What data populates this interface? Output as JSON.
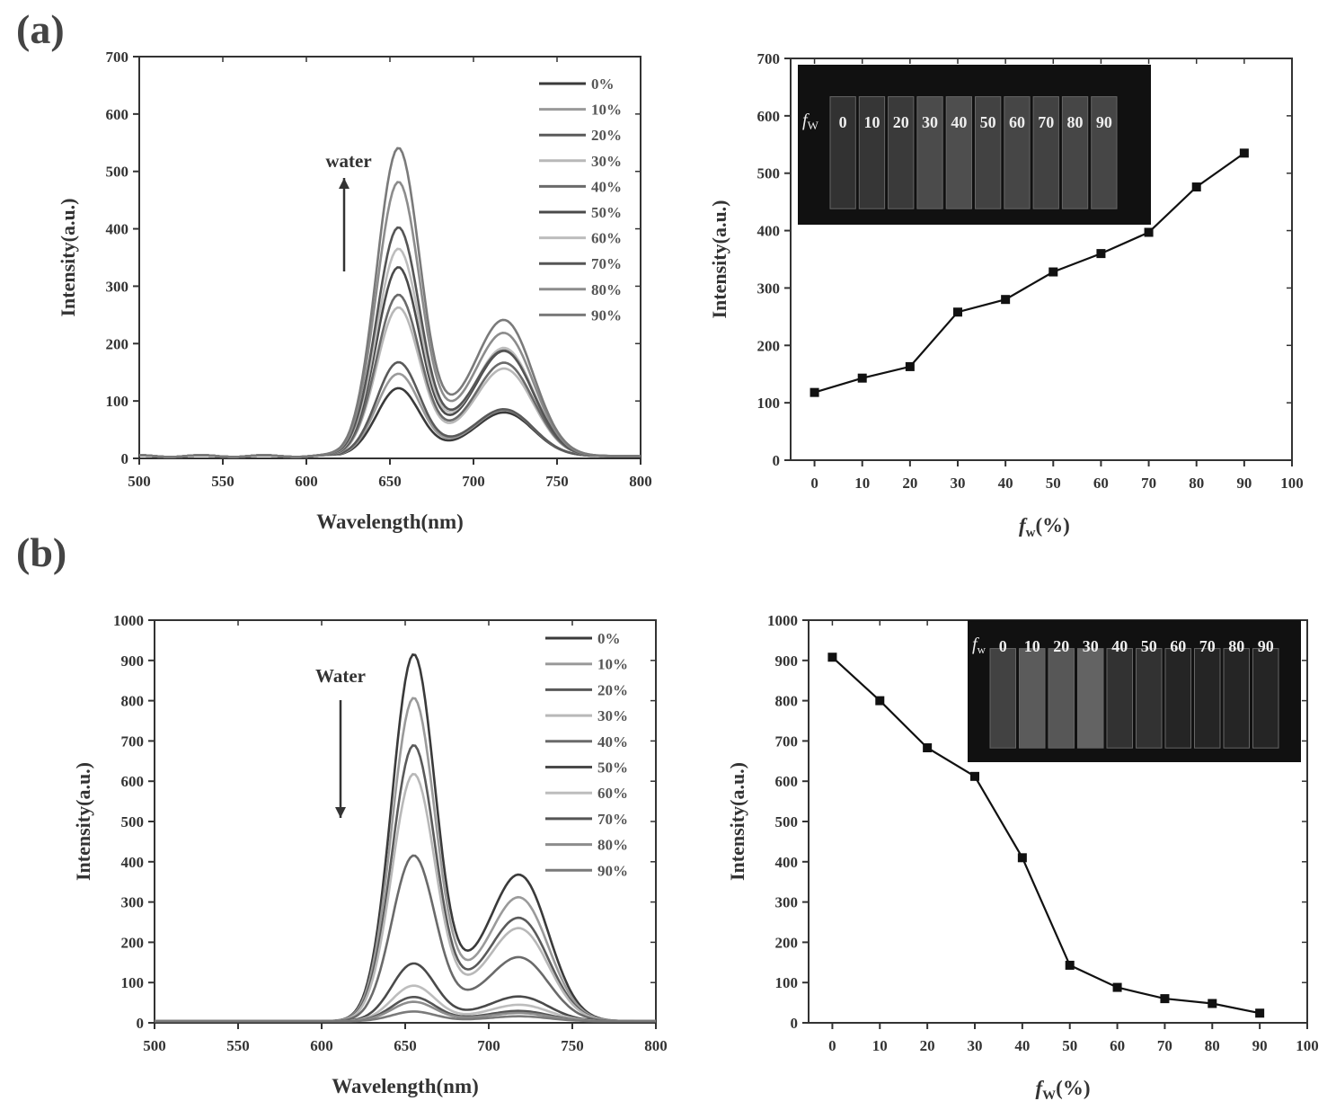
{
  "panel_labels": {
    "a": "(a)",
    "b": "(b)"
  },
  "colors": {
    "axis": "#333333",
    "spectrum_palette": [
      "#3a3a3a",
      "#9a9a9a",
      "#5a5a5a",
      "#b8b8b8",
      "#6a6a6a",
      "#4a4a4a",
      "#bdbdbd",
      "#555555",
      "#8c8c8c",
      "#7a7a7a"
    ],
    "inset_bg": "#111111",
    "marker": "#111111"
  },
  "chart_data": [
    {
      "id": "a-spectra",
      "type": "line",
      "xlabel": "Wavelength(nm)",
      "ylabel": "Intensity(a.u.)",
      "xlim": [
        500,
        800
      ],
      "ylim": [
        0,
        700
      ],
      "xticks": [
        "500",
        "550",
        "600",
        "650",
        "700",
        "750",
        "800"
      ],
      "yticks": [
        "0",
        "100",
        "200",
        "300",
        "400",
        "500",
        "600",
        "700"
      ],
      "annotation": "water",
      "arrow_direction": "up",
      "series": [
        {
          "name": "0%",
          "peak650": 118,
          "peak720": 75
        },
        {
          "name": "10%",
          "peak650": 143,
          "peak720": 79
        },
        {
          "name": "20%",
          "peak650": 163,
          "peak720": 80
        },
        {
          "name": "30%",
          "peak650": 258,
          "peak720": 150
        },
        {
          "name": "40%",
          "peak650": 280,
          "peak720": 160
        },
        {
          "name": "50%",
          "peak650": 328,
          "peak720": 180
        },
        {
          "name": "60%",
          "peak650": 360,
          "peak720": 185
        },
        {
          "name": "70%",
          "peak650": 397,
          "peak720": 180
        },
        {
          "name": "80%",
          "peak650": 476,
          "peak720": 210
        },
        {
          "name": "90%",
          "peak650": 535,
          "peak720": 232
        }
      ]
    },
    {
      "id": "a-intensity",
      "type": "line",
      "xlabel_italic": "f",
      "xlabel_sub": "w",
      "xlabel_rest": "(%)",
      "ylabel": "Intensity(a.u.)",
      "xlim": [
        -5,
        100
      ],
      "ylim": [
        0,
        700
      ],
      "xticks": [
        "0",
        "10",
        "20",
        "30",
        "40",
        "50",
        "60",
        "70",
        "80",
        "90",
        "100"
      ],
      "yticks": [
        "0",
        "100",
        "200",
        "300",
        "400",
        "500",
        "600",
        "700"
      ],
      "x": [
        0,
        10,
        20,
        30,
        40,
        50,
        60,
        70,
        80,
        90
      ],
      "y": [
        118,
        143,
        163,
        258,
        280,
        328,
        360,
        397,
        476,
        535
      ],
      "inset": {
        "label_italic": "f",
        "label_sub": "W",
        "vial_labels": [
          "0",
          "10",
          "20",
          "30",
          "40",
          "50",
          "60",
          "70",
          "80",
          "90"
        ],
        "brightness": [
          0.25,
          0.3,
          0.35,
          0.55,
          0.6,
          0.45,
          0.5,
          0.45,
          0.5,
          0.5
        ]
      }
    },
    {
      "id": "b-spectra",
      "type": "line",
      "xlabel": "Wavelength(nm)",
      "ylabel": "Intensity(a.u.)",
      "xlim": [
        500,
        800
      ],
      "ylim": [
        0,
        1000
      ],
      "xticks": [
        "500",
        "550",
        "600",
        "650",
        "700",
        "750",
        "800"
      ],
      "yticks": [
        "0",
        "100",
        "200",
        "300",
        "400",
        "500",
        "600",
        "700",
        "800",
        "900",
        "1000"
      ],
      "annotation": "Water",
      "arrow_direction": "down",
      "series": [
        {
          "name": "0%",
          "peak650": 908,
          "peak720": 355
        },
        {
          "name": "10%",
          "peak650": 800,
          "peak720": 300
        },
        {
          "name": "20%",
          "peak650": 683,
          "peak720": 250
        },
        {
          "name": "30%",
          "peak650": 612,
          "peak720": 225
        },
        {
          "name": "40%",
          "peak650": 410,
          "peak720": 155
        },
        {
          "name": "50%",
          "peak650": 143,
          "peak720": 60
        },
        {
          "name": "60%",
          "peak650": 88,
          "peak720": 40
        },
        {
          "name": "70%",
          "peak650": 60,
          "peak720": 25
        },
        {
          "name": "80%",
          "peak650": 48,
          "peak720": 20
        },
        {
          "name": "90%",
          "peak650": 24,
          "peak720": 12
        }
      ]
    },
    {
      "id": "b-intensity",
      "type": "line",
      "xlabel_italic": "f",
      "xlabel_sub": "W",
      "xlabel_rest": "(%)",
      "ylabel": "Intensity(a.u.)",
      "xlim": [
        -5,
        100
      ],
      "ylim": [
        0,
        1000
      ],
      "xticks": [
        "0",
        "10",
        "20",
        "30",
        "40",
        "50",
        "60",
        "70",
        "80",
        "90",
        "100"
      ],
      "yticks": [
        "0",
        "100",
        "200",
        "300",
        "400",
        "500",
        "600",
        "700",
        "800",
        "900",
        "1000"
      ],
      "x": [
        0,
        10,
        20,
        30,
        40,
        50,
        60,
        70,
        80,
        90
      ],
      "y": [
        908,
        800,
        683,
        612,
        410,
        143,
        88,
        60,
        48,
        24
      ],
      "inset": {
        "label_italic": "f",
        "label_sub": "w",
        "vial_labels": [
          "0",
          "10",
          "20",
          "30",
          "40",
          "50",
          "60",
          "70",
          "80",
          "90"
        ],
        "brightness": [
          0.45,
          0.75,
          0.7,
          0.85,
          0.25,
          0.25,
          0.1,
          0.1,
          0.1,
          0.1
        ]
      }
    }
  ]
}
